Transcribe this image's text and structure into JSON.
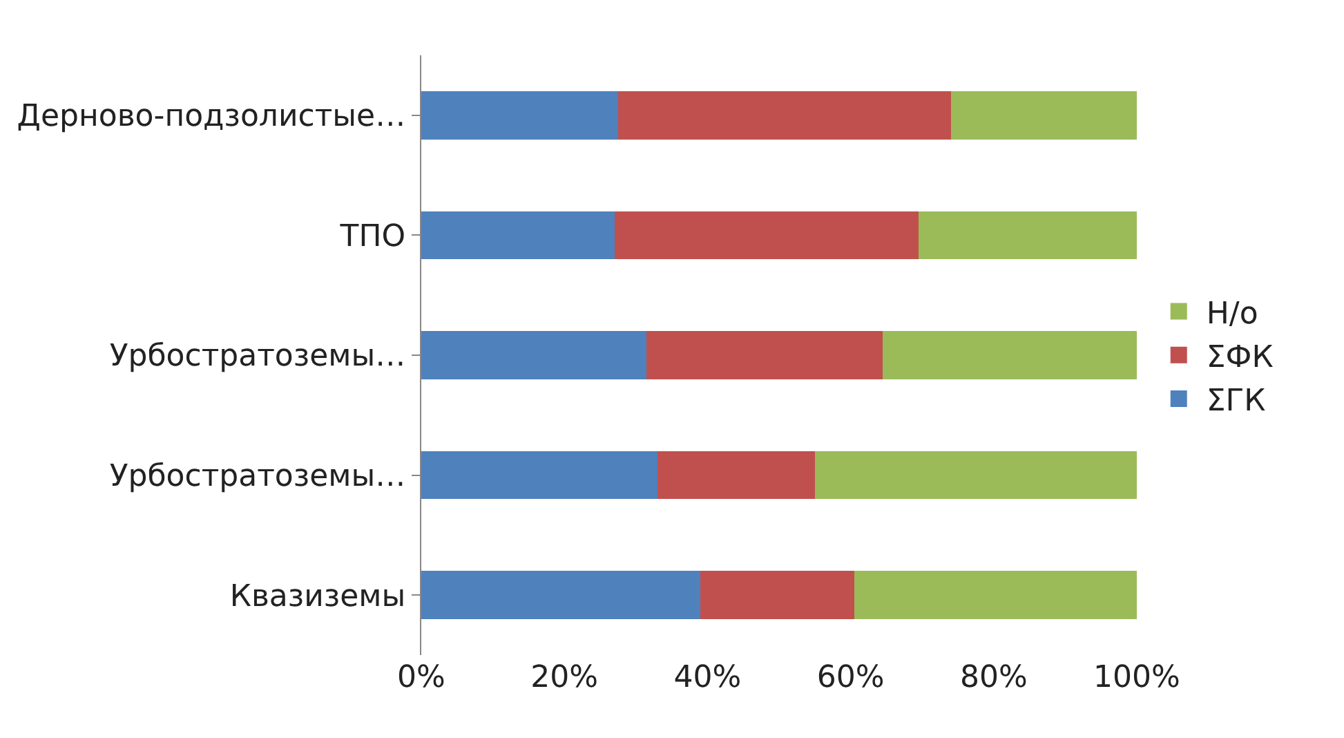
{
  "chart_data": {
    "type": "bar",
    "orientation": "horizontal",
    "stacked": true,
    "categories": [
      "Дерново-подзолистые…",
      "ТПО",
      "Урбостратоземы…",
      "Урбостратоземы…",
      "Квазиземы"
    ],
    "series": [
      {
        "name": "ΣГК",
        "color": "#4f81bd",
        "values": [
          27.5,
          27,
          31.5,
          33,
          39
        ]
      },
      {
        "name": "ΣФК",
        "color": "#c0504d",
        "values": [
          46.5,
          42.5,
          33,
          22,
          21.5
        ]
      },
      {
        "name": "Н/о",
        "color": "#9bbb59",
        "values": [
          26,
          30.5,
          35.5,
          45,
          39.5
        ]
      }
    ],
    "xlim": [
      0,
      100
    ],
    "xticks": [
      {
        "value": 0,
        "label": "0%"
      },
      {
        "value": 20,
        "label": "20%"
      },
      {
        "value": 40,
        "label": "40%"
      },
      {
        "value": 60,
        "label": "60%"
      },
      {
        "value": 80,
        "label": "80%"
      },
      {
        "value": 100,
        "label": "100%"
      }
    ],
    "grid": false,
    "legend": "right"
  }
}
